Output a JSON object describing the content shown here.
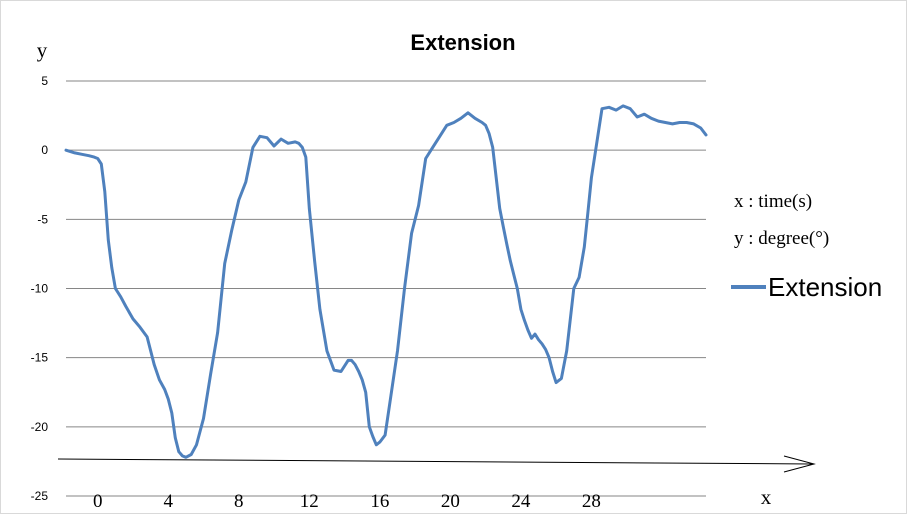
{
  "chart_data": {
    "type": "line",
    "title": "Extension",
    "ylabel": "y",
    "xlabel": "x",
    "ylim": [
      -25,
      5
    ],
    "y_ticks": [
      "5",
      "0",
      "-5",
      "-10",
      "-15",
      "-20",
      "-25"
    ],
    "x_ticks": [
      "0",
      "4",
      "8",
      "12",
      "16",
      "20",
      "24",
      "28"
    ],
    "x_tick_values": [
      0,
      4,
      8,
      12,
      16,
      20,
      24,
      28
    ],
    "xlim": [
      -1.8,
      34.5
    ],
    "grid": true,
    "legend_position": "right",
    "annotations": [
      "x : time(s)",
      "y : degree(°)"
    ],
    "series": [
      {
        "name": "Extension",
        "color": "#4f81bd",
        "x": [
          -1.8,
          -1.3,
          -0.9,
          -0.5,
          -0.2,
          0.0,
          0.2,
          0.4,
          0.6,
          0.8,
          1.0,
          1.3,
          1.6,
          2.0,
          2.4,
          2.8,
          3.2,
          3.5,
          3.8,
          4.0,
          4.2,
          4.4,
          4.6,
          4.8,
          5.0,
          5.3,
          5.6,
          6.0,
          6.4,
          6.8,
          7.2,
          7.6,
          8.0,
          8.4,
          8.8,
          9.2,
          9.6,
          10.0,
          10.4,
          10.8,
          11.2,
          11.4,
          11.6,
          11.8,
          12.0,
          12.3,
          12.6,
          13.0,
          13.4,
          13.8,
          14.2,
          14.4,
          14.6,
          14.8,
          15.0,
          15.2,
          15.4,
          15.6,
          15.8,
          16.0,
          16.3,
          16.6,
          17.0,
          17.4,
          17.8,
          18.2,
          18.6,
          19.0,
          19.4,
          19.8,
          20.2,
          20.6,
          21.0,
          21.4,
          21.8,
          22.0,
          22.2,
          22.4,
          22.6,
          22.8,
          23.0,
          23.2,
          23.4,
          23.6,
          23.8,
          24.0,
          24.2,
          24.4,
          24.6,
          24.8,
          25.0,
          25.2,
          25.4,
          25.6,
          25.8,
          26.0,
          26.3,
          26.6,
          27.0,
          27.3,
          27.6,
          27.8,
          28.0,
          28.3,
          28.6,
          29.0,
          29.4,
          29.8,
          30.2,
          30.6,
          31.0,
          31.4,
          31.8,
          32.2,
          32.6,
          33.0,
          33.4,
          33.8,
          34.2,
          34.5
        ],
        "y": [
          0.0,
          -0.2,
          -0.3,
          -0.4,
          -0.5,
          -0.6,
          -1.0,
          -3.0,
          -6.5,
          -8.5,
          -10.0,
          -10.6,
          -11.3,
          -12.2,
          -12.8,
          -13.5,
          -15.5,
          -16.6,
          -17.3,
          -18.0,
          -19.0,
          -20.8,
          -21.8,
          -22.1,
          -22.2,
          -22.0,
          -21.3,
          -19.4,
          -16.2,
          -13.2,
          -8.2,
          -5.8,
          -3.6,
          -2.3,
          0.2,
          1.0,
          0.9,
          0.3,
          0.8,
          0.5,
          0.6,
          0.5,
          0.2,
          -0.5,
          -4.2,
          -8.0,
          -11.5,
          -14.5,
          -15.9,
          -16.0,
          -15.2,
          -15.2,
          -15.5,
          -16.0,
          -16.6,
          -17.5,
          -20.0,
          -20.7,
          -21.3,
          -21.1,
          -20.6,
          -18.0,
          -14.5,
          -10.0,
          -6.0,
          -4.0,
          -0.6,
          0.2,
          1.0,
          1.8,
          2.0,
          2.3,
          2.7,
          2.3,
          2.0,
          1.8,
          1.2,
          0.2,
          -2.0,
          -4.2,
          -5.5,
          -6.8,
          -8.0,
          -9.0,
          -10.0,
          -11.5,
          -12.3,
          -13.0,
          -13.6,
          -13.3,
          -13.7,
          -14.0,
          -14.4,
          -15.0,
          -16.0,
          -16.8,
          -16.5,
          -14.5,
          -10.0,
          -9.2,
          -7.0,
          -4.5,
          -2.0,
          0.5,
          3.0,
          3.1,
          2.9,
          3.2,
          3.0,
          2.4,
          2.6,
          2.3,
          2.1,
          2.0,
          1.9,
          2.0,
          2.0,
          1.9,
          1.6,
          1.1
        ]
      }
    ]
  }
}
